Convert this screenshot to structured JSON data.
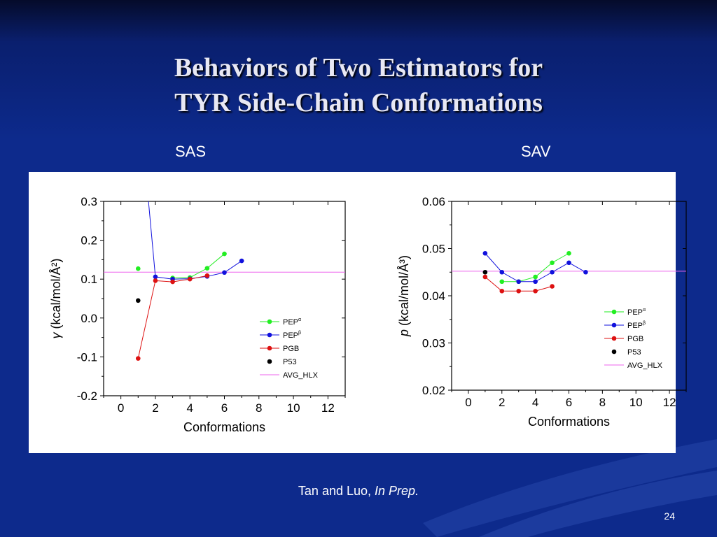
{
  "slide": {
    "title_line1": "Behaviors of Two Estimators for",
    "title_line2": "TYR Side-Chain Conformations",
    "label_left": "SAS",
    "label_right": "SAV",
    "citation_authors": "Tan and Luo,",
    "citation_status": "In Prep.",
    "page_number": "24"
  },
  "colors": {
    "PEP_alpha": "#22ee22",
    "PEP_beta": "#1111dd",
    "PGB": "#dd1111",
    "P53": "#000000",
    "AVG_HLX": "#ee66ee"
  },
  "chart_data": [
    {
      "type": "scatter",
      "xlabel": "Conformations",
      "ylabel_symbol": "γ",
      "ylabel_text": "(kcal/mol/Å²)",
      "xlim": [
        -1,
        13
      ],
      "ylim": [
        -0.2,
        0.3
      ],
      "xticks": [
        "0",
        "2",
        "4",
        "6",
        "8",
        "10",
        "12"
      ],
      "yticks": [
        "-0.2",
        "-0.1",
        "0.0",
        "0.1",
        "0.2",
        "0.3"
      ],
      "legend_position": "bottom-right",
      "series": [
        {
          "name": "PEPα",
          "color_key": "PEP_alpha",
          "connect": false,
          "x": [
            1
          ],
          "y": [
            0.127
          ]
        },
        {
          "name": "PEPα",
          "color_key": "PEP_alpha",
          "connect": true,
          "x": [
            3,
            4,
            5,
            6
          ],
          "y": [
            0.103,
            0.104,
            0.128,
            0.165
          ]
        },
        {
          "name": "PEPβ",
          "color_key": "PEP_beta",
          "connect": true,
          "x": [
            2,
            3,
            4,
            5,
            6,
            7
          ],
          "y": [
            0.106,
            0.1,
            0.101,
            0.107,
            0.117,
            0.147
          ]
        },
        {
          "name": "PEPβ (off-scale segment)",
          "color_key": "PEP_beta",
          "connect": true,
          "x": [
            1.6,
            2
          ],
          "y": [
            0.3,
            0.106
          ]
        },
        {
          "name": "PGB",
          "color_key": "PGB",
          "connect": true,
          "x": [
            1,
            2,
            3,
            4,
            5
          ],
          "y": [
            -0.104,
            0.096,
            0.093,
            0.1,
            0.109
          ]
        },
        {
          "name": "P53",
          "color_key": "P53",
          "connect": false,
          "x": [
            1
          ],
          "y": [
            0.045
          ]
        }
      ],
      "hline": {
        "name": "AVG_HLX",
        "color_key": "AVG_HLX",
        "y": 0.118
      },
      "legend": [
        {
          "label": "PEP",
          "sup": "α",
          "color_key": "PEP_alpha",
          "kind": "line-marker"
        },
        {
          "label": "PEP",
          "sup": "β",
          "color_key": "PEP_beta",
          "kind": "line-marker"
        },
        {
          "label": "PGB",
          "sup": "",
          "color_key": "PGB",
          "kind": "line-marker"
        },
        {
          "label": "P53",
          "sup": "",
          "color_key": "P53",
          "kind": "marker"
        },
        {
          "label": "AVG_HLX",
          "sup": "",
          "color_key": "AVG_HLX",
          "kind": "line"
        }
      ]
    },
    {
      "type": "scatter",
      "xlabel": "Conformations",
      "ylabel_symbol": "p",
      "ylabel_text": "(kcal/mol/Å³)",
      "xlim": [
        -1,
        13
      ],
      "ylim": [
        0.02,
        0.06
      ],
      "xticks": [
        "0",
        "2",
        "4",
        "6",
        "8",
        "10",
        "12"
      ],
      "yticks": [
        "0.02",
        "0.03",
        "0.04",
        "0.05",
        "0.06"
      ],
      "legend_position": "bottom-right",
      "series": [
        {
          "name": "PEPα",
          "color_key": "PEP_alpha",
          "connect": true,
          "x": [
            2,
            3,
            4,
            5,
            6
          ],
          "y": [
            0.043,
            0.043,
            0.044,
            0.047,
            0.049
          ]
        },
        {
          "name": "PEPβ",
          "color_key": "PEP_beta",
          "connect": true,
          "x": [
            1,
            2,
            3,
            4,
            5,
            6,
            7
          ],
          "y": [
            0.049,
            0.045,
            0.043,
            0.043,
            0.045,
            0.047,
            0.045
          ]
        },
        {
          "name": "PGB",
          "color_key": "PGB",
          "connect": true,
          "x": [
            1,
            2,
            3,
            4,
            5
          ],
          "y": [
            0.044,
            0.041,
            0.041,
            0.041,
            0.042
          ]
        },
        {
          "name": "P53",
          "color_key": "P53",
          "connect": false,
          "x": [
            1
          ],
          "y": [
            0.045
          ]
        }
      ],
      "hline": {
        "name": "AVG_HLX",
        "color_key": "AVG_HLX",
        "y": 0.0452
      },
      "legend": [
        {
          "label": "PEP",
          "sup": "α",
          "color_key": "PEP_alpha",
          "kind": "line-marker"
        },
        {
          "label": "PEP",
          "sup": "β",
          "color_key": "PEP_beta",
          "kind": "line-marker"
        },
        {
          "label": "PGB",
          "sup": "",
          "color_key": "PGB",
          "kind": "line-marker"
        },
        {
          "label": "P53",
          "sup": "",
          "color_key": "P53",
          "kind": "marker"
        },
        {
          "label": "AVG_HLX",
          "sup": "",
          "color_key": "AVG_HLX",
          "kind": "line"
        }
      ]
    }
  ]
}
